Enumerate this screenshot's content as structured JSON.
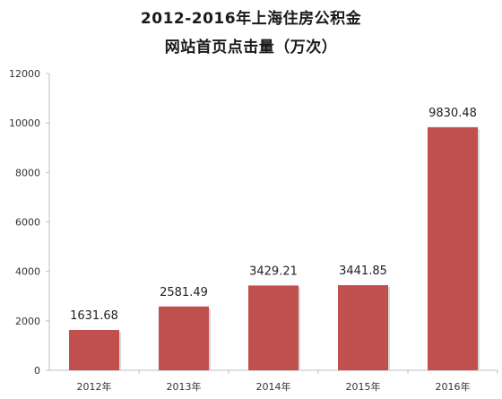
{
  "chart_data": {
    "type": "bar",
    "title": [
      "2012-2016年上海住房公积金",
      "网站首页点击量（万次）"
    ],
    "categories": [
      "2012年",
      "2013年",
      "2014年",
      "2015年",
      "2016年"
    ],
    "values": [
      1631.68,
      2581.49,
      3429.21,
      3441.85,
      9830.48
    ],
    "value_labels": [
      "1631.68",
      "2581.49",
      "3429.21",
      "3441.85",
      "9830.48"
    ],
    "y_ticks": [
      "0",
      "2000",
      "4000",
      "6000",
      "8000",
      "10000",
      "12000"
    ],
    "ylim": [
      0,
      12000
    ],
    "grid": false,
    "bar_color": "#c0504d",
    "bar_shadow_color": "#d9d9d9",
    "axis_color": "#bfbfbf"
  }
}
